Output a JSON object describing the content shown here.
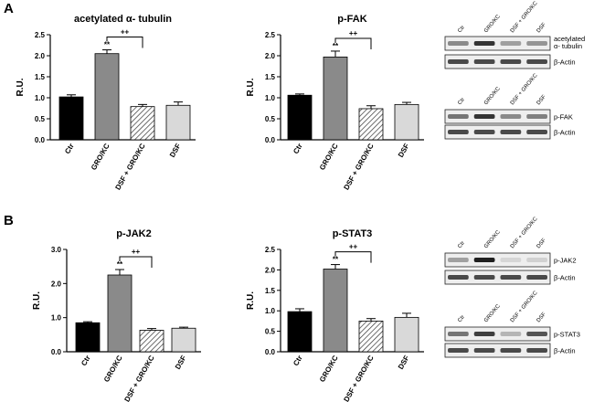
{
  "panels": [
    {
      "letter": "A"
    },
    {
      "letter": "B"
    }
  ],
  "colors": {
    "ctr": "#000000",
    "gro": "#8a8a8a",
    "dsf": "#d9d9d9",
    "hatch": "#333333",
    "axis": "#000000"
  },
  "chart_data": [
    {
      "type": "bar",
      "title": "acetylated α- tubulin",
      "ylabel": "R.U.",
      "ylim": [
        0,
        2.5
      ],
      "yticks": [
        "0.0",
        "0.5",
        "1.0",
        "1.5",
        "2.0",
        "2.5"
      ],
      "categories": [
        "Ctr",
        "GRO/KC",
        "DSF + GRO/KC",
        "DSF"
      ],
      "values": [
        1.02,
        2.05,
        0.79,
        0.82
      ],
      "errors": [
        0.05,
        0.09,
        0.05,
        0.08
      ],
      "annotations": [
        {
          "bar": 1,
          "text": "**"
        }
      ],
      "bracket": {
        "from": 1,
        "to": 2,
        "text": "++"
      }
    },
    {
      "type": "bar",
      "title": "p-FAK",
      "ylabel": "R.U.",
      "ylim": [
        0,
        2.5
      ],
      "yticks": [
        "0.0",
        "0.5",
        "1.0",
        "1.5",
        "2.0",
        "2.5"
      ],
      "categories": [
        "Ctr",
        "GRO/KC",
        "DSF + GRO/KC",
        "DSF"
      ],
      "values": [
        1.06,
        1.97,
        0.74,
        0.84
      ],
      "errors": [
        0.03,
        0.14,
        0.07,
        0.05
      ],
      "annotations": [
        {
          "bar": 1,
          "text": "**"
        }
      ],
      "bracket": {
        "from": 1,
        "to": 2,
        "text": "++"
      }
    },
    {
      "type": "bar",
      "title": "p-JAK2",
      "ylabel": "R.U.",
      "ylim": [
        0,
        3.0
      ],
      "yticks": [
        "0.0",
        "1.0",
        "2.0",
        "3.0"
      ],
      "categories": [
        "Ctr",
        "GRO/KC",
        "DSF + GRO/KC",
        "DSF"
      ],
      "values": [
        0.85,
        2.25,
        0.63,
        0.69
      ],
      "errors": [
        0.03,
        0.16,
        0.05,
        0.03
      ],
      "annotations": [
        {
          "bar": 1,
          "text": "**"
        }
      ],
      "bracket": {
        "from": 1,
        "to": 2,
        "text": "++"
      }
    },
    {
      "type": "bar",
      "title": "p-STAT3",
      "ylabel": "R.U.",
      "ylim": [
        0,
        2.5
      ],
      "yticks": [
        "0.0",
        "0.5",
        "1.0",
        "1.5",
        "2.0",
        "2.5"
      ],
      "categories": [
        "Ctr",
        "GRO/KC",
        "DSF + GRO/KC",
        "DSF"
      ],
      "values": [
        0.98,
        2.02,
        0.75,
        0.84
      ],
      "errors": [
        0.07,
        0.11,
        0.06,
        0.1
      ],
      "annotations": [
        {
          "bar": 1,
          "text": "**"
        }
      ],
      "bracket": {
        "from": 1,
        "to": 2,
        "text": "++"
      }
    }
  ],
  "blots": [
    {
      "lanes": [
        "Ctr",
        "GRO/KC",
        "DSF + GRO/KC",
        "DSF"
      ],
      "rows": [
        {
          "label": "acetylated α- tubulin",
          "intensity": [
            0.45,
            0.85,
            0.35,
            0.4
          ]
        },
        {
          "label": "β-Actin",
          "intensity": [
            0.75,
            0.75,
            0.75,
            0.75
          ]
        }
      ]
    },
    {
      "lanes": [
        "Ctr",
        "GRO/KC",
        "DSF + GRO/KC",
        "DSF"
      ],
      "rows": [
        {
          "label": "p-FAK",
          "intensity": [
            0.55,
            0.85,
            0.45,
            0.5
          ]
        },
        {
          "label": "β-Actin",
          "intensity": [
            0.75,
            0.75,
            0.75,
            0.75
          ]
        }
      ]
    },
    {
      "lanes": [
        "Ctr",
        "GRO/KC",
        "DSF + GRO/KC",
        "DSF"
      ],
      "rows": [
        {
          "label": "p-JAK2",
          "intensity": [
            0.35,
            0.95,
            0.1,
            0.12
          ]
        },
        {
          "label": "β-Actin",
          "intensity": [
            0.75,
            0.75,
            0.75,
            0.75
          ]
        }
      ]
    },
    {
      "lanes": [
        "Ctr",
        "GRO/KC",
        "DSF + GRO/KC",
        "DSF"
      ],
      "rows": [
        {
          "label": "p-STAT3",
          "intensity": [
            0.55,
            0.8,
            0.25,
            0.7
          ]
        },
        {
          "label": "β-Actin",
          "intensity": [
            0.75,
            0.75,
            0.75,
            0.75
          ]
        }
      ]
    }
  ]
}
